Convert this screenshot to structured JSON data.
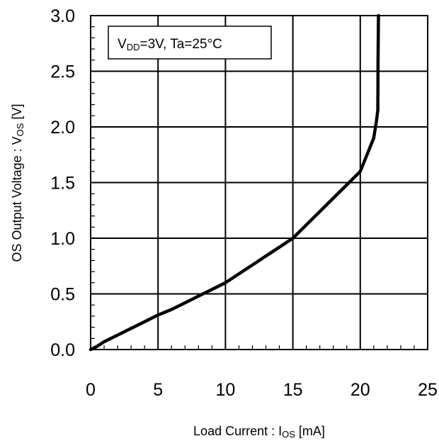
{
  "chart_data": {
    "type": "line",
    "xlabel_main": "Load Current : I",
    "xlabel_sub": "OS",
    "xlabel_tail": " [mA]",
    "ylabel_main": "OS Output Voltage : V",
    "ylabel_sub": "OS",
    "ylabel_tail": " [V]",
    "annotation": {
      "prefix": "V",
      "sub": "DD",
      "rest": "=3V, Ta=25°C"
    },
    "xlim": [
      0,
      25
    ],
    "ylim": [
      0,
      3.0
    ],
    "x_ticks": [
      0,
      5,
      10,
      15,
      20,
      25
    ],
    "x_tick_labels": [
      "0",
      "5",
      "10",
      "15",
      "20",
      "25"
    ],
    "y_ticks": [
      0,
      0.5,
      1.0,
      1.5,
      2.0,
      2.5,
      3.0
    ],
    "y_tick_labels": [
      "0.0",
      "0.5",
      "1.0",
      "1.5",
      "2.0",
      "2.5",
      "3.0"
    ],
    "grid": true,
    "series": [
      {
        "x": [
          0,
          0.5,
          1,
          1.5,
          2,
          2.5,
          3,
          3.5,
          4,
          4.5,
          5,
          6,
          7,
          8,
          9,
          10,
          11,
          12,
          13,
          14,
          15,
          16,
          17,
          18,
          19,
          20,
          20.5,
          21,
          21.2,
          21.3,
          21.32,
          21.35
        ],
        "y": [
          0,
          0.03,
          0.07,
          0.1,
          0.13,
          0.16,
          0.19,
          0.22,
          0.25,
          0.28,
          0.31,
          0.36,
          0.42,
          0.48,
          0.54,
          0.6,
          0.68,
          0.76,
          0.84,
          0.92,
          1.0,
          1.12,
          1.24,
          1.36,
          1.48,
          1.6,
          1.75,
          1.9,
          2.05,
          2.15,
          2.6,
          3.0
        ]
      }
    ]
  }
}
